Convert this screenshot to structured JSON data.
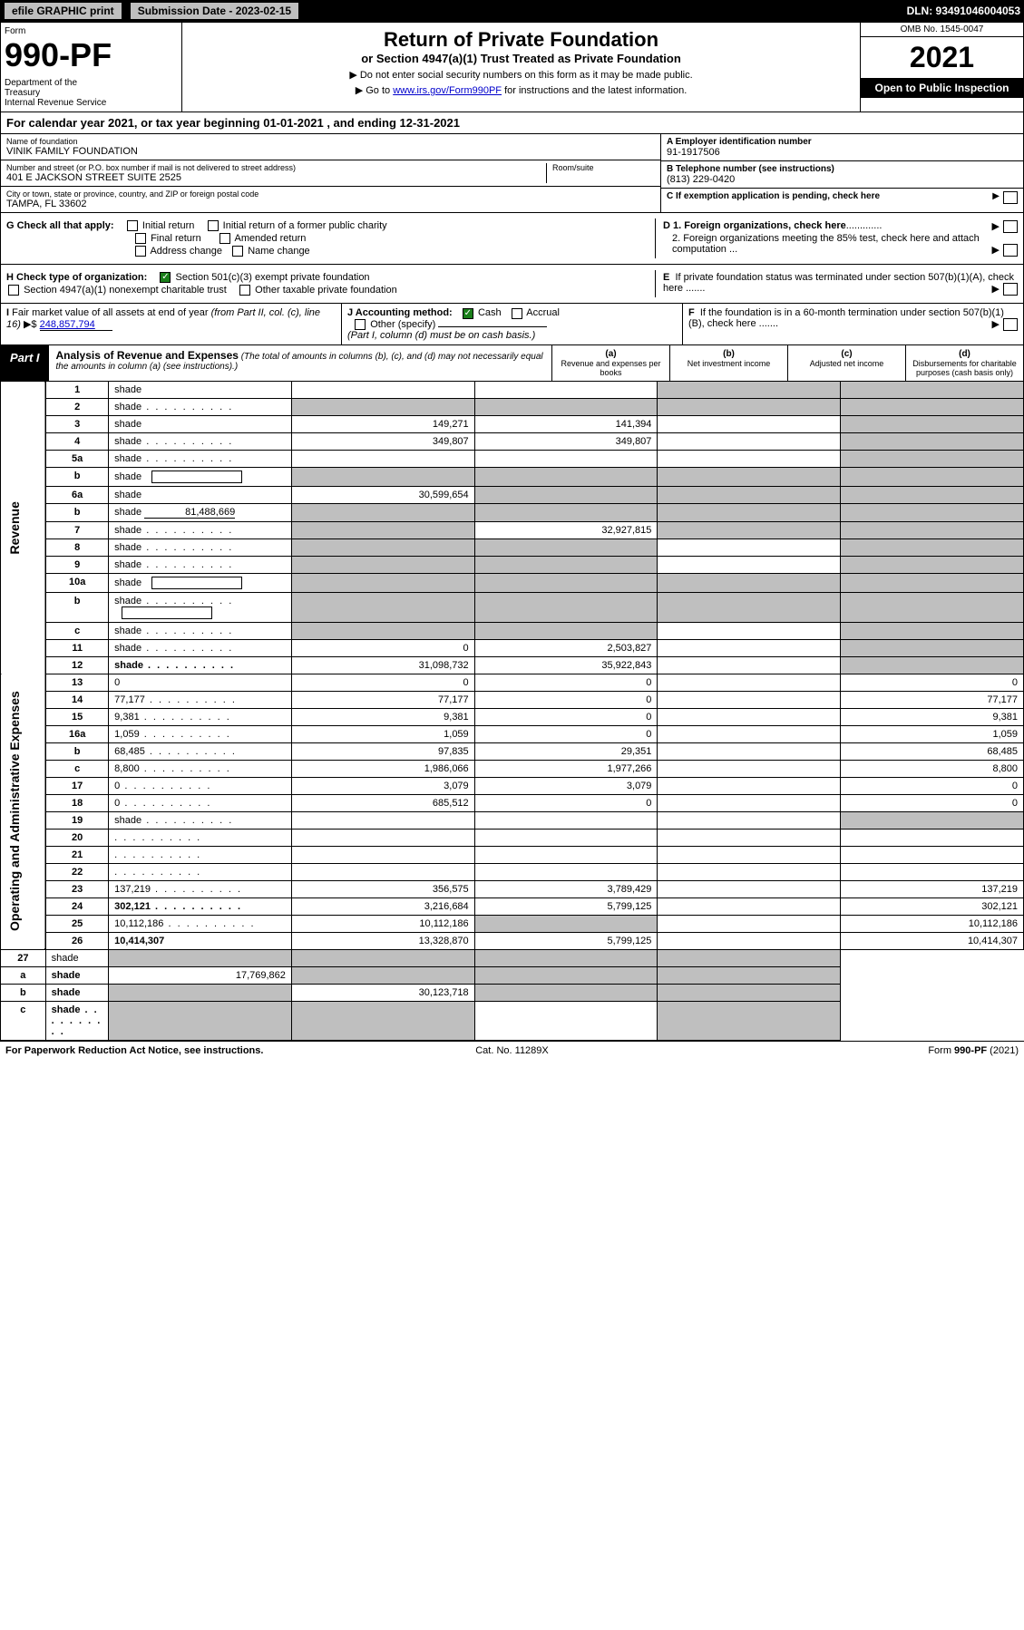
{
  "topbar": {
    "efile": "efile GRAPHIC print",
    "submission_label": "Submission Date - 2023-02-15",
    "dln": "DLN: 93491046004053"
  },
  "header": {
    "form_label": "Form",
    "form_num": "990-PF",
    "dept": "Department of the Treasury\nInternal Revenue Service",
    "title": "Return of Private Foundation",
    "subtitle": "or Section 4947(a)(1) Trust Treated as Private Foundation",
    "note1": "▶ Do not enter social security numbers on this form as it may be made public.",
    "note2": "▶ Go to ",
    "note2_link": "www.irs.gov/Form990PF",
    "note2_rest": " for instructions and the latest information.",
    "omb": "OMB No. 1545-0047",
    "year": "2021",
    "open": "Open to Public Inspection"
  },
  "cal_year": "For calendar year 2021, or tax year beginning 01-01-2021                                 , and ending 12-31-2021",
  "info": {
    "name_label": "Name of foundation",
    "name": "VINIK FAMILY FOUNDATION",
    "addr_label": "Number and street (or P.O. box number if mail is not delivered to street address)",
    "addr": "401 E JACKSON STREET SUITE 2525",
    "room_label": "Room/suite",
    "city_label": "City or town, state or province, country, and ZIP or foreign postal code",
    "city": "TAMPA, FL  33602",
    "ein_label": "A Employer identification number",
    "ein": "91-1917506",
    "tel_label": "B Telephone number (see instructions)",
    "tel": "(813) 229-0420",
    "c_label": "C If exemption application is pending, check here"
  },
  "checks": {
    "g_label": "G Check all that apply:",
    "g1": "Initial return",
    "g2": "Initial return of a former public charity",
    "g3": "Final return",
    "g4": "Amended return",
    "g5": "Address change",
    "g6": "Name change",
    "h_label": "H Check type of organization:",
    "h1": "Section 501(c)(3) exempt private foundation",
    "h2": "Section 4947(a)(1) nonexempt charitable trust",
    "h3": "Other taxable private foundation",
    "i_label": "I Fair market value of all assets at end of year (from Part II, col. (c), line 16) ▶$ ",
    "i_val": "248,857,794",
    "j_label": "J Accounting method:",
    "j1": "Cash",
    "j2": "Accrual",
    "j3": "Other (specify)",
    "j_note": "(Part I, column (d) must be on cash basis.)",
    "d1": "D 1. Foreign organizations, check here",
    "d2": "2. Foreign organizations meeting the 85% test, check here and attach computation ...",
    "e": "E  If private foundation status was terminated under section 507(b)(1)(A), check here .......",
    "f": "F  If the foundation is in a 60-month termination under section 507(b)(1)(B), check here ......."
  },
  "part1": {
    "label": "Part I",
    "title": "Analysis of Revenue and Expenses",
    "note": "(The total of amounts in columns (b), (c), and (d) may not necessarily equal the amounts in column (a) (see instructions).)",
    "col_a": "(a)",
    "col_a_sub": "Revenue and expenses per books",
    "col_b": "(b)",
    "col_b_sub": "Net investment income",
    "col_c": "(c)",
    "col_c_sub": "Adjusted net income",
    "col_d": "(d)",
    "col_d_sub": "Disbursements for charitable purposes (cash basis only)"
  },
  "side_labels": {
    "revenue": "Revenue",
    "expenses": "Operating and Administrative Expenses"
  },
  "rows": [
    {
      "n": "1",
      "d": "shade",
      "a": "",
      "b": "",
      "c": "shade"
    },
    {
      "n": "2",
      "d": "shade",
      "a": "shade",
      "b": "shade",
      "c": "shade",
      "dots": true,
      "bold_not": true
    },
    {
      "n": "3",
      "d": "shade",
      "a": "149,271",
      "b": "141,394",
      "c": ""
    },
    {
      "n": "4",
      "d": "shade",
      "a": "349,807",
      "b": "349,807",
      "c": "",
      "dots": true
    },
    {
      "n": "5a",
      "d": "shade",
      "a": "",
      "b": "",
      "c": "",
      "dots": true
    },
    {
      "n": "b",
      "d": "shade",
      "a": "shade",
      "b": "shade",
      "c": "shade",
      "inline_blank": true
    },
    {
      "n": "6a",
      "d": "shade",
      "a": "30,599,654",
      "b": "shade",
      "c": "shade"
    },
    {
      "n": "b",
      "d": "shade",
      "a": "shade",
      "b": "shade",
      "c": "shade",
      "inline_val": "81,488,669"
    },
    {
      "n": "7",
      "d": "shade",
      "a": "shade",
      "b": "32,927,815",
      "c": "shade",
      "dots": true
    },
    {
      "n": "8",
      "d": "shade",
      "a": "shade",
      "b": "shade",
      "c": "",
      "dots": true
    },
    {
      "n": "9",
      "d": "shade",
      "a": "shade",
      "b": "shade",
      "c": "",
      "dots": true
    },
    {
      "n": "10a",
      "d": "shade",
      "a": "shade",
      "b": "shade",
      "c": "shade",
      "inline_blank": true
    },
    {
      "n": "b",
      "d": "shade",
      "a": "shade",
      "b": "shade",
      "c": "shade",
      "dots": true,
      "inline_blank": true
    },
    {
      "n": "c",
      "d": "shade",
      "a": "shade",
      "b": "shade",
      "c": "",
      "dots": true
    },
    {
      "n": "11",
      "d": "shade",
      "a": "0",
      "b": "2,503,827",
      "c": "",
      "dots": true
    },
    {
      "n": "12",
      "d": "shade",
      "a": "31,098,732",
      "b": "35,922,843",
      "c": "",
      "dots": true,
      "bold": true
    }
  ],
  "exp_rows": [
    {
      "n": "13",
      "d": "0",
      "a": "0",
      "b": "0",
      "c": ""
    },
    {
      "n": "14",
      "d": "77,177",
      "a": "77,177",
      "b": "0",
      "c": "",
      "dots": true
    },
    {
      "n": "15",
      "d": "9,381",
      "a": "9,381",
      "b": "0",
      "c": "",
      "dots": true
    },
    {
      "n": "16a",
      "d": "1,059",
      "a": "1,059",
      "b": "0",
      "c": "",
      "dots": true
    },
    {
      "n": "b",
      "d": "68,485",
      "a": "97,835",
      "b": "29,351",
      "c": "",
      "dots": true
    },
    {
      "n": "c",
      "d": "8,800",
      "a": "1,986,066",
      "b": "1,977,266",
      "c": "",
      "dots": true
    },
    {
      "n": "17",
      "d": "0",
      "a": "3,079",
      "b": "3,079",
      "c": "",
      "dots": true
    },
    {
      "n": "18",
      "d": "0",
      "a": "685,512",
      "b": "0",
      "c": "",
      "dots": true
    },
    {
      "n": "19",
      "d": "shade",
      "a": "",
      "b": "",
      "c": "",
      "dots": true
    },
    {
      "n": "20",
      "d": "",
      "a": "",
      "b": "",
      "c": "",
      "dots": true
    },
    {
      "n": "21",
      "d": "",
      "a": "",
      "b": "",
      "c": "",
      "dots": true
    },
    {
      "n": "22",
      "d": "",
      "a": "",
      "b": "",
      "c": "",
      "dots": true
    },
    {
      "n": "23",
      "d": "137,219",
      "a": "356,575",
      "b": "3,789,429",
      "c": "",
      "dots": true
    },
    {
      "n": "24",
      "d": "302,121",
      "a": "3,216,684",
      "b": "5,799,125",
      "c": "",
      "dots": true,
      "bold": true,
      "twoline": true
    },
    {
      "n": "25",
      "d": "10,112,186",
      "a": "10,112,186",
      "b": "shade",
      "c": "",
      "dots": true
    },
    {
      "n": "26",
      "d": "10,414,307",
      "a": "13,328,870",
      "b": "5,799,125",
      "c": "",
      "bold": true,
      "twoline": true
    }
  ],
  "final_rows": [
    {
      "n": "27",
      "d": "shade",
      "a": "shade",
      "b": "shade",
      "c": "shade"
    },
    {
      "n": "a",
      "d": "shade",
      "a": "17,769,862",
      "b": "shade",
      "c": "shade",
      "bold": true
    },
    {
      "n": "b",
      "d": "shade",
      "a": "shade",
      "b": "30,123,718",
      "c": "shade",
      "bold": true
    },
    {
      "n": "c",
      "d": "shade",
      "a": "shade",
      "b": "shade",
      "c": "",
      "bold": true,
      "dots": true
    }
  ],
  "footer": {
    "l": "For Paperwork Reduction Act Notice, see instructions.",
    "c": "Cat. No. 11289X",
    "r": "Form 990-PF (2021)"
  }
}
